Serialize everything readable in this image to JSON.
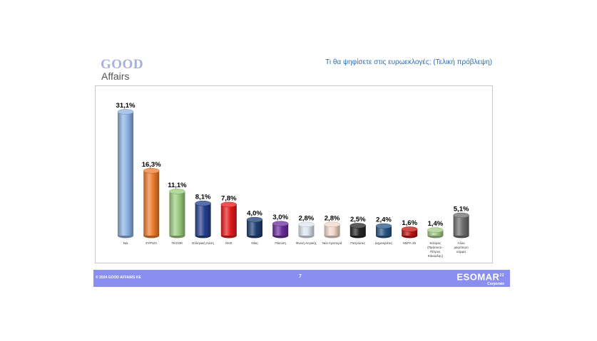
{
  "header": {
    "logo_top": "GOOD",
    "logo_bottom": "Affairs",
    "title": "Τι θα ψηφίσετε στις ευρωεκλογές; (Τελική πρόβλεψη)"
  },
  "footer": {
    "copyright": "© 2024 GOOD AFFAIRS ΚΕ",
    "page_number": "7",
    "badge_main": "ESOMAR",
    "badge_sup": "22",
    "badge_sub": "Corporate"
  },
  "chart_data": {
    "type": "bar",
    "title": "Τι θα ψηφίσετε στις ευρωεκλογές; (Τελική πρόβλεψη)",
    "xlabel": "",
    "ylabel": "",
    "ylim": [
      0,
      35
    ],
    "grid": false,
    "legend": "none",
    "categories": [
      "ΝΔ",
      "ΣΥΡΙΖΑ",
      "ΠΑΣΟΚ",
      "Ελληνική Λύση",
      "ΚΚΕ",
      "Νίκη",
      "Πλεύση",
      "Φωνή Λογικής",
      "Νέα Αριστερά",
      "Πατριώτες",
      "Δημοκράτες",
      "ΜέΡΑ 25",
      "Κόσμος (Πράσινοι - Πέτρος Κόκκαλης)",
      "Άλλο μικρότερο κόμμα"
    ],
    "category_lines": [
      [
        "ΝΔ"
      ],
      [
        "ΣΥΡΙΖΑ"
      ],
      [
        "ΠΑΣΟΚ"
      ],
      [
        "Ελληνική Λύση"
      ],
      [
        "ΚΚΕ"
      ],
      [
        "Νίκη"
      ],
      [
        "Πλεύση"
      ],
      [
        "Φωνή Λογικής"
      ],
      [
        "Νέα Αριστερά"
      ],
      [
        "Πατριώτες"
      ],
      [
        "Δημοκράτες"
      ],
      [
        "ΜέΡΑ 25"
      ],
      [
        "Κόσμος",
        "(Πράσινοι -",
        "Πέτρος",
        "Κόκκαλης)"
      ],
      [
        "Άλλο",
        "μικρότερο",
        "κόμμα"
      ]
    ],
    "values": [
      31.1,
      16.3,
      11.1,
      8.1,
      7.8,
      4.0,
      3.0,
      2.8,
      2.8,
      2.5,
      2.4,
      1.6,
      1.4,
      5.1
    ],
    "labels": [
      "31,1%",
      "16,3%",
      "11,1%",
      "8,1%",
      "7,8%",
      "4,0%",
      "3,0%",
      "2,8%",
      "2,8%",
      "2,5%",
      "2,4%",
      "1,6%",
      "1,4%",
      "5,1%"
    ],
    "colors": [
      "#8fb3e3",
      "#ee7c30",
      "#9ccc7f",
      "#243f8c",
      "#e51b1b",
      "#1f3f74",
      "#6a2c9a",
      "#dde6ee",
      "#f0d8ca",
      "#262626",
      "#2a5585",
      "#bf1414",
      "#a5cc8a",
      "#6e6e6e"
    ]
  }
}
